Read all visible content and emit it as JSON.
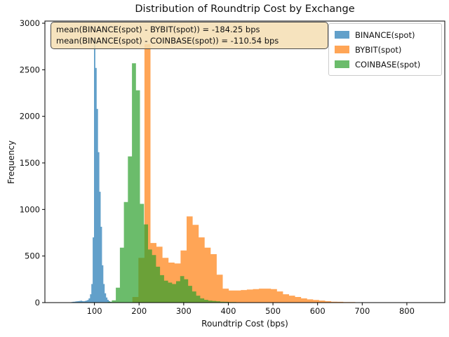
{
  "title": "Distribution of Roundtrip Cost by Exchange",
  "axes": {
    "xlabel": "Roundtrip Cost (bps)",
    "ylabel": "Frequency"
  },
  "annotation": {
    "line1": "mean(BINANCE(spot) - BYBIT(spot)) = -184.25 bps",
    "line2": "mean(BINANCE(spot) - COINBASE(spot)) = -110.54 bps"
  },
  "legend": {
    "items": [
      {
        "label": "BINANCE(spot)",
        "color": "#1f77b4"
      },
      {
        "label": "BYBIT(spot)",
        "color": "#ff7f0e"
      },
      {
        "label": "COINBASE(spot)",
        "color": "#2ca02c"
      }
    ]
  },
  "chart_data": {
    "type": "bar",
    "subtype": "overlaid-histogram",
    "title": "Distribution of Roundtrip Cost by Exchange",
    "xlabel": "Roundtrip Cost (bps)",
    "ylabel": "Frequency",
    "xlim": [
      -11,
      885
    ],
    "ylim": [
      0,
      3023
    ],
    "x_ticks": [
      100,
      200,
      300,
      400,
      500,
      600,
      700,
      800
    ],
    "y_ticks": [
      0,
      500,
      1000,
      1500,
      2000,
      2500,
      3000
    ],
    "grid": false,
    "legend_position": "upper right",
    "alpha": 0.7,
    "series": [
      {
        "name": "BINANCE(spot)",
        "key": "binance-spot",
        "color": "#1f77b4",
        "bin_start": 45,
        "bin_width": 3,
        "counts": [
          4,
          6,
          8,
          10,
          12,
          14,
          16,
          18,
          20,
          16,
          14,
          18,
          22,
          28,
          45,
          90,
          200,
          700,
          2830,
          2520,
          2080,
          1615,
          1190,
          814,
          400,
          200,
          100,
          55,
          30,
          15,
          8
        ]
      },
      {
        "name": "BYBIT(spot)",
        "key": "bybit-spot",
        "color": "#ff7f0e",
        "bin_start": 185,
        "bin_width": 13.5,
        "counts": [
          60,
          480,
          2775,
          640,
          600,
          480,
          430,
          420,
          560,
          925,
          835,
          700,
          590,
          520,
          300,
          150,
          130,
          130,
          135,
          140,
          145,
          150,
          150,
          145,
          120,
          90,
          75,
          60,
          45,
          35,
          28,
          22,
          15,
          10,
          8,
          6,
          5,
          4,
          4,
          3,
          3,
          2,
          2,
          2,
          2,
          1,
          1,
          1,
          1,
          1
        ]
      },
      {
        "name": "COINBASE(spot)",
        "key": "coinbase-spot",
        "color": "#2ca02c",
        "bin_start": 130,
        "bin_width": 9,
        "counts": [
          8,
          25,
          160,
          590,
          1080,
          1570,
          2570,
          2280,
          1060,
          840,
          570,
          510,
          385,
          295,
          235,
          215,
          200,
          230,
          285,
          250,
          180,
          120,
          75,
          45,
          30,
          22,
          18,
          14,
          10,
          8,
          6,
          5,
          4,
          3,
          3,
          2,
          2,
          2
        ]
      }
    ]
  }
}
